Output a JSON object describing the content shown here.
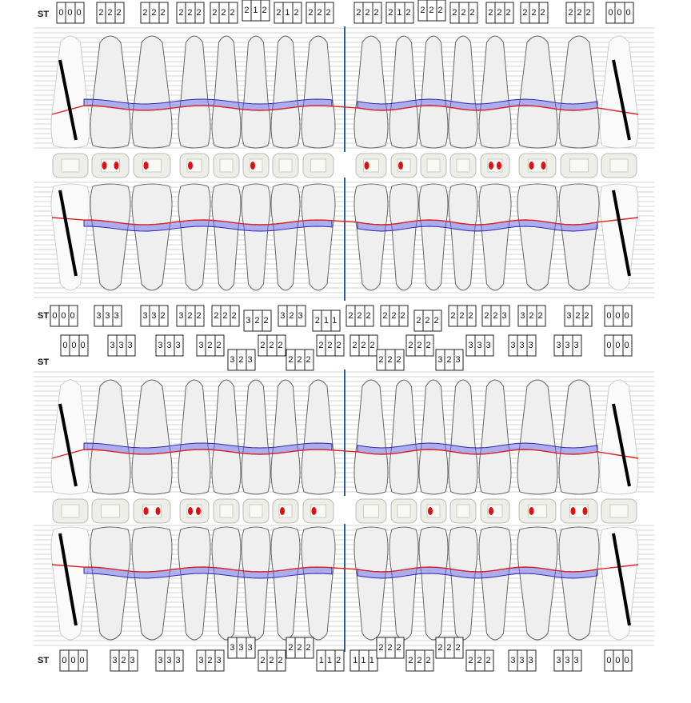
{
  "sections": [
    {
      "label": "ST",
      "values": [
        "000",
        "222",
        "222",
        "222",
        "222",
        "212",
        "212",
        "222",
        "222",
        "212",
        "222",
        "222",
        "222",
        "222",
        "222",
        "000"
      ]
    },
    {
      "label": "ST",
      "values": [
        "000",
        "333",
        "332",
        "322",
        "222",
        "322",
        "323",
        "211",
        "222",
        "222",
        "222",
        "222",
        "223",
        "322",
        "322",
        "000"
      ]
    },
    {
      "label": "ST",
      "values": [
        "000",
        "333",
        "333",
        "322",
        "323",
        "222",
        "222",
        "222",
        "222",
        "222",
        "222",
        "323",
        "333",
        "333",
        "333",
        "000"
      ]
    },
    {
      "label": "ST",
      "values": [
        "000",
        "323",
        "333",
        "323",
        "333",
        "222",
        "222",
        "112",
        "111",
        "222",
        "222",
        "222",
        "222",
        "333",
        "333",
        "000"
      ]
    }
  ]
}
